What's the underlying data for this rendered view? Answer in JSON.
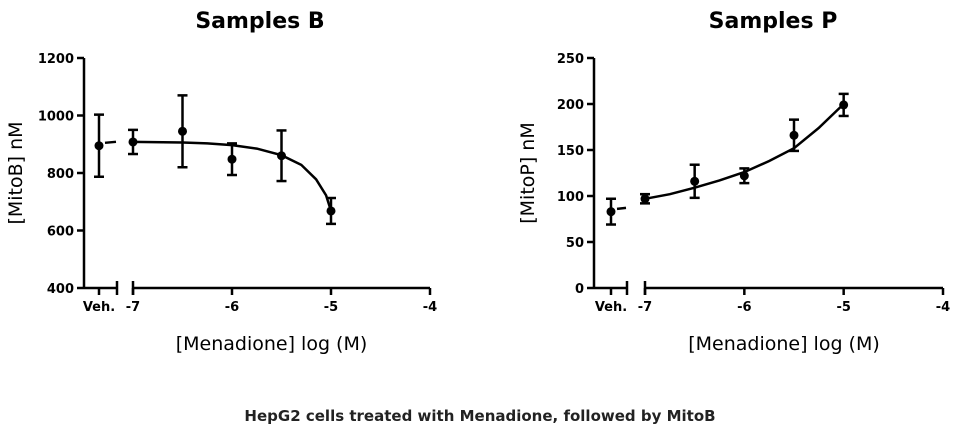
{
  "caption": "HepG2 cells treated with Menadione, followed by MitoB",
  "chart_data": [
    {
      "type": "scatter",
      "title": "Samples B",
      "xlabel": "[Menadione] log (M)",
      "ylabel": "[MitoB] nM",
      "ylim": [
        400,
        1200
      ],
      "yticks": [
        400,
        600,
        800,
        1000,
        1200
      ],
      "xlim": [
        -7,
        -4
      ],
      "xticks": [
        -7,
        -6,
        -5,
        -4
      ],
      "vehicle_label": "Veh.",
      "vehicle": {
        "y": 895,
        "yerr": 108
      },
      "points": [
        {
          "x": -7.0,
          "y": 908,
          "yerr": 42
        },
        {
          "x": -6.5,
          "y": 945,
          "yerr": 125
        },
        {
          "x": -6.0,
          "y": 848,
          "yerr": 55
        },
        {
          "x": -5.5,
          "y": 860,
          "yerr": 88
        },
        {
          "x": -5.0,
          "y": 668,
          "yerr": 45
        }
      ],
      "fit": [
        [
          -7.0,
          908
        ],
        [
          -6.5,
          906
        ],
        [
          -6.25,
          903
        ],
        [
          -6.0,
          897
        ],
        [
          -5.75,
          885
        ],
        [
          -5.5,
          862
        ],
        [
          -5.3,
          828
        ],
        [
          -5.15,
          778
        ],
        [
          -5.05,
          722
        ],
        [
          -5.0,
          668
        ]
      ],
      "vehicle_fit_y": 905
    },
    {
      "type": "scatter",
      "title": "Samples P",
      "xlabel": "[Menadione] log (M)",
      "ylabel": "[MitoP] nM",
      "ylim": [
        0,
        250
      ],
      "yticks": [
        0,
        50,
        100,
        150,
        200,
        250
      ],
      "xlim": [
        -7,
        -4
      ],
      "xticks": [
        -7,
        -6,
        -5,
        -4
      ],
      "vehicle_label": "Veh.",
      "vehicle": {
        "y": 83,
        "yerr": 14
      },
      "points": [
        {
          "x": -7.0,
          "y": 97,
          "yerr": 5
        },
        {
          "x": -6.5,
          "y": 116,
          "yerr": 18
        },
        {
          "x": -6.0,
          "y": 122,
          "yerr": 8
        },
        {
          "x": -5.5,
          "y": 166,
          "yerr": 17
        },
        {
          "x": -5.0,
          "y": 199,
          "yerr": 12
        }
      ],
      "fit": [
        [
          -7.0,
          97
        ],
        [
          -6.75,
          102
        ],
        [
          -6.5,
          109
        ],
        [
          -6.25,
          117
        ],
        [
          -6.0,
          126
        ],
        [
          -5.75,
          138
        ],
        [
          -5.5,
          152
        ],
        [
          -5.25,
          174
        ],
        [
          -5.0,
          200
        ]
      ],
      "vehicle_fit_y": 86
    }
  ]
}
